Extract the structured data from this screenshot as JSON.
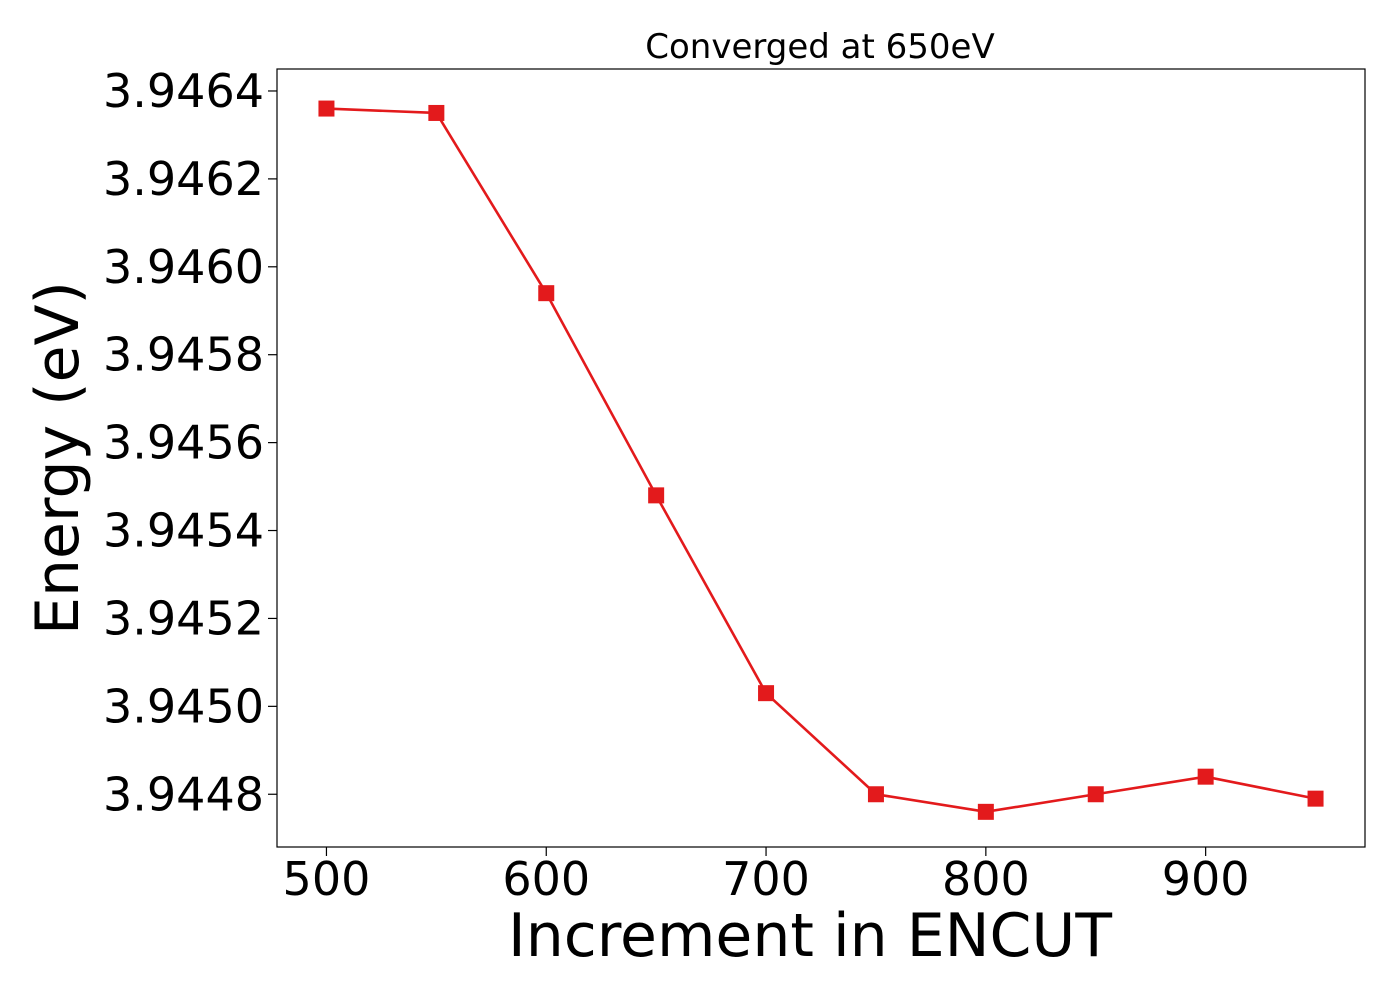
{
  "chart_data": {
    "type": "line",
    "title": "Converged at 650eV",
    "xlabel": "Increment in ENCUT",
    "ylabel": "Energy (eV)",
    "xlim": [
      477.5,
      972.5
    ],
    "ylim": [
      3.94468,
      3.94645
    ],
    "xticks": [
      500,
      600,
      700,
      800,
      900
    ],
    "xtick_labels": [
      "500",
      "600",
      "700",
      "800",
      "900"
    ],
    "yticks": [
      3.9448,
      3.945,
      3.9452,
      3.9454,
      3.9456,
      3.9458,
      3.946,
      3.9462,
      3.9464
    ],
    "ytick_labels": [
      "3.9448",
      "3.9450",
      "3.9452",
      "3.9454",
      "3.9456",
      "3.9458",
      "3.9460",
      "3.9462",
      "3.9464"
    ],
    "grid": false,
    "legend": null,
    "series": [
      {
        "color": "#e31a1c",
        "marker": "square",
        "x": [
          500,
          550,
          600,
          650,
          700,
          750,
          800,
          850,
          900,
          950
        ],
        "y": [
          3.94636,
          3.94635,
          3.94594,
          3.94548,
          3.94503,
          3.9448,
          3.94476,
          3.9448,
          3.94484,
          3.94479
        ]
      }
    ]
  }
}
